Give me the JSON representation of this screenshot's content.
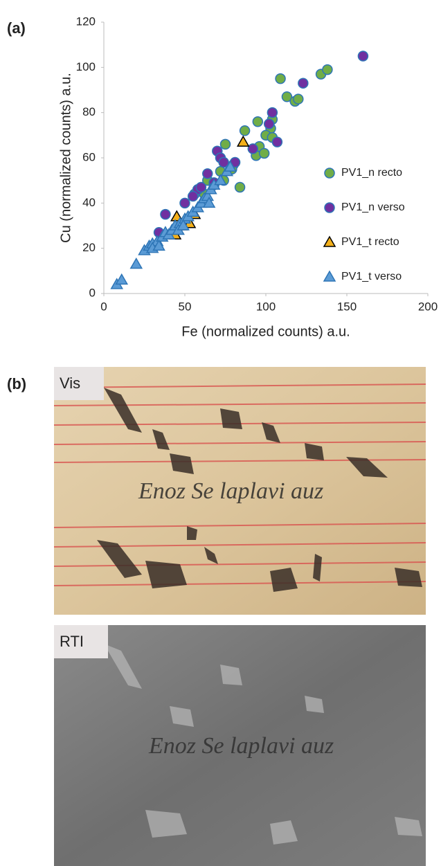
{
  "chart_data": {
    "type": "scatter",
    "xlabel": "Fe (normalized counts) a.u.",
    "ylabel": "Cu (normalized counts) a.u.",
    "xlim": [
      0,
      200
    ],
    "xticks": [
      0,
      50,
      100,
      150,
      200
    ],
    "ylim": [
      0,
      120
    ],
    "yticks": [
      0,
      20,
      40,
      60,
      80,
      100,
      120
    ],
    "grid": false,
    "legend": "right",
    "series": [
      {
        "name": "PV1_n recto",
        "marker": "circle",
        "color": "#70ad47",
        "edgecolor": "#2e75b6",
        "x": [
          109,
          113,
          118,
          120,
          134,
          138,
          104,
          103,
          100,
          104,
          95,
          87,
          96,
          94,
          84,
          75,
          72,
          74,
          64,
          58,
          56,
          80,
          79,
          68,
          62,
          99
        ],
        "values": [
          95,
          87,
          85,
          86,
          97,
          99,
          77,
          73,
          70,
          69,
          76,
          72,
          65,
          61,
          47,
          66,
          54,
          50,
          50,
          46,
          44,
          57,
          55,
          48,
          44,
          62
        ]
      },
      {
        "name": "PV1_n verso",
        "marker": "circle",
        "color": "#7030a0",
        "edgecolor": "#2e75b6",
        "x": [
          160,
          123,
          104,
          107,
          92,
          81,
          70,
          72,
          64,
          68,
          58,
          50,
          38,
          34,
          55,
          102,
          74,
          60
        ],
        "values": [
          105,
          93,
          80,
          67,
          64,
          58,
          63,
          60,
          53,
          49,
          46,
          40,
          35,
          27,
          43,
          75,
          58,
          47
        ]
      },
      {
        "name": "PV1_t recto",
        "marker": "triangle",
        "color": "#f4b01a",
        "edgecolor": "#000000",
        "x": [
          86,
          45,
          56,
          44,
          53,
          48
        ],
        "values": [
          67,
          34,
          35,
          26,
          31,
          30
        ]
      },
      {
        "name": "PV1_t verso",
        "marker": "triangle",
        "color": "#5b9bd5",
        "edgecolor": "#2e75b6",
        "x": [
          8,
          11,
          20,
          25,
          28,
          30,
          33,
          36,
          38,
          40,
          42,
          44,
          47,
          50,
          52,
          55,
          58,
          60,
          62,
          64,
          65,
          66,
          68,
          72,
          76,
          78,
          30,
          34,
          46,
          49
        ],
        "values": [
          4,
          6,
          13,
          19,
          21,
          22,
          23,
          25,
          27,
          26,
          28,
          30,
          31,
          33,
          34,
          36,
          38,
          40,
          42,
          43,
          40,
          46,
          48,
          50,
          54,
          56,
          20,
          21,
          28,
          30
        ]
      }
    ]
  },
  "panels": {
    "a": "(a)",
    "b": "(b)",
    "vis": "Vis",
    "rti": "RTI"
  }
}
